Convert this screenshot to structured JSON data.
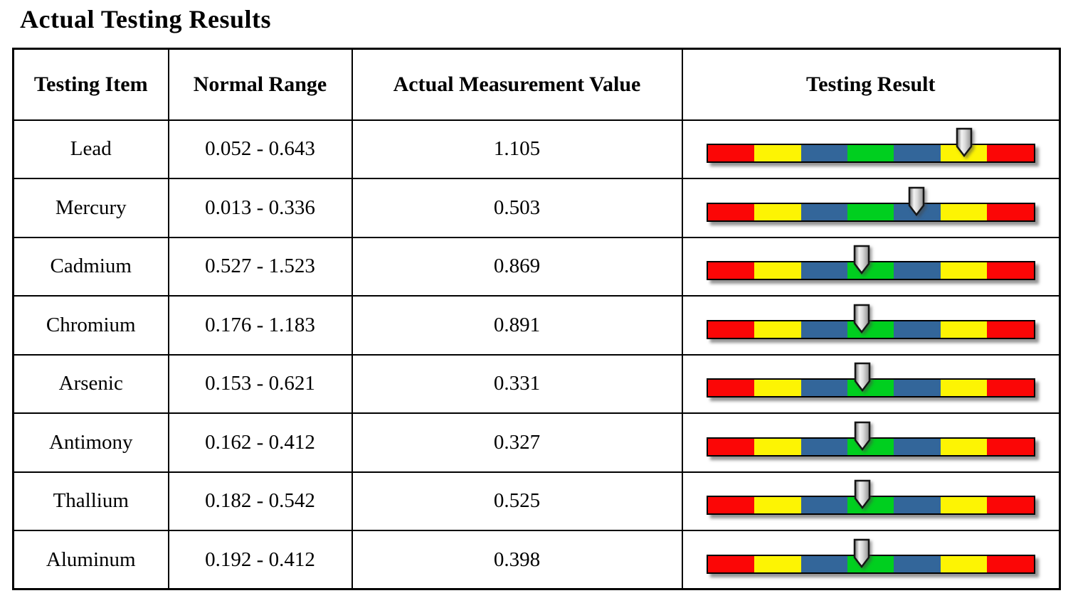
{
  "title": "Actual Testing Results",
  "table": {
    "headers": {
      "item": "Testing Item",
      "range": "Normal Range",
      "value": "Actual Measurement Value",
      "result": "Testing Result"
    },
    "scale_segments": [
      "red",
      "yellow",
      "blue",
      "green",
      "blue",
      "yellow",
      "red"
    ],
    "scale_colors": {
      "red": "#FB0606",
      "yellow": "#FDF403",
      "blue": "#33669A",
      "green": "#00CF1F"
    },
    "rows": [
      {
        "item": "Lead",
        "range": "0.052 - 0.643",
        "value": "1.105",
        "marker_pos": 78.5
      },
      {
        "item": "Mercury",
        "range": "0.013 - 0.336",
        "value": "0.503",
        "marker_pos": 63.9
      },
      {
        "item": "Cadmium",
        "range": "0.527 - 1.523",
        "value": "0.869",
        "marker_pos": 47.3
      },
      {
        "item": "Chromium",
        "range": "0.176 - 1.183",
        "value": "0.891",
        "marker_pos": 47.3
      },
      {
        "item": "Arsenic",
        "range": "0.153 - 0.621",
        "value": "0.331",
        "marker_pos": 47.4
      },
      {
        "item": "Antimony",
        "range": "0.162 - 0.412",
        "value": "0.327",
        "marker_pos": 47.4
      },
      {
        "item": "Thallium",
        "range": "0.182 - 0.542",
        "value": "0.525",
        "marker_pos": 47.4
      },
      {
        "item": "Aluminum",
        "range": "0.192 - 0.412",
        "value": "0.398",
        "marker_pos": 47.3
      }
    ]
  }
}
